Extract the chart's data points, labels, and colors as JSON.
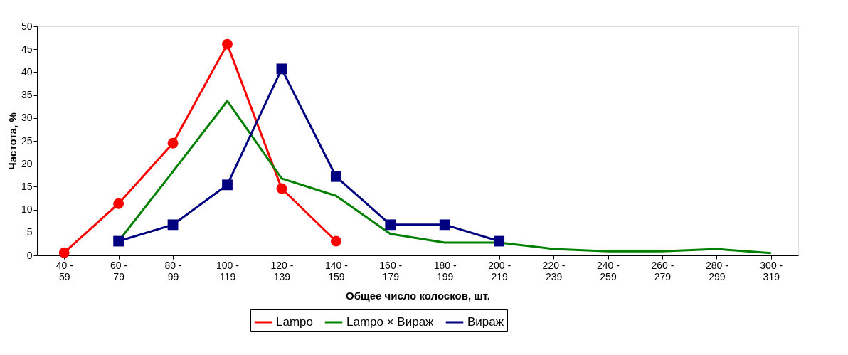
{
  "chart_data": {
    "type": "line",
    "xlabel": "Общее число колосков, шт.",
    "ylabel": "Частота, %",
    "categories": [
      "40 - 59",
      "60 - 79",
      "80 - 99",
      "100 - 119",
      "120 - 139",
      "140 - 159",
      "160 - 179",
      "180 - 199",
      "200 - 219",
      "220 - 239",
      "240 - 259",
      "260 - 279",
      "280 - 299",
      "300 - 319"
    ],
    "series": [
      {
        "name": "Lampo",
        "color": "#ff0000",
        "marker": "circle",
        "values": [
          0.6,
          11.3,
          24.5,
          46.1,
          14.6,
          3.1,
          null,
          null,
          null,
          null,
          null,
          null,
          null,
          null
        ]
      },
      {
        "name": "Lampo × Вираж",
        "color": "#008000",
        "marker": "none",
        "values": [
          null,
          3.1,
          18.3,
          33.7,
          16.8,
          13.0,
          4.7,
          2.8,
          2.8,
          1.4,
          0.9,
          0.9,
          1.4,
          0.5
        ]
      },
      {
        "name": "Вираж",
        "color": "#000080",
        "marker": "square",
        "values": [
          null,
          3.1,
          6.7,
          15.4,
          40.7,
          17.2,
          6.7,
          6.7,
          3.1,
          null,
          null,
          null,
          null,
          null
        ]
      }
    ],
    "ylim": [
      0,
      50
    ],
    "yticks": [
      0,
      5,
      10,
      15,
      20,
      25,
      30,
      35,
      40,
      45,
      50
    ],
    "grid": false,
    "legend": "bottom",
    "line_style": "solid"
  }
}
